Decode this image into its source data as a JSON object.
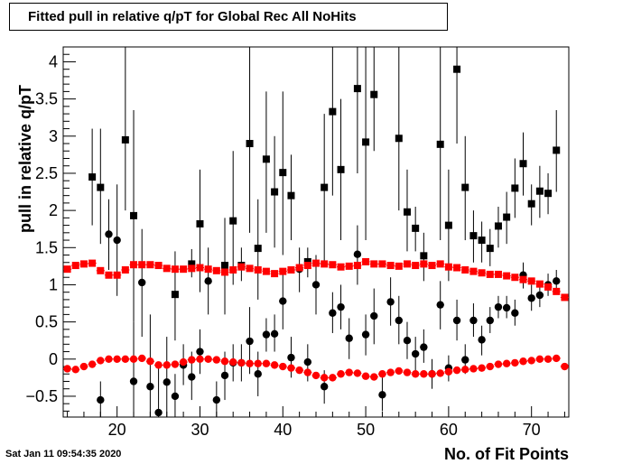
{
  "chart_data": {
    "type": "scatter",
    "title": "Fitted pull in relative q/pT for Global Rec All NoHits",
    "xlabel": "No. of Fit Points",
    "ylabel": "pull in relative q/pT",
    "xlim": [
      13.5,
      74.5
    ],
    "ylim": [
      -0.78,
      4.2
    ],
    "xticks": [
      20,
      30,
      40,
      50,
      60,
      70
    ],
    "yticks": [
      -0.5,
      0,
      0.5,
      1,
      1.5,
      2,
      2.5,
      3,
      3.5,
      4
    ],
    "xtick_labels": [
      "20",
      "30",
      "40",
      "50",
      "60",
      "70"
    ],
    "ytick_labels": [
      "−0.5",
      "0",
      "0.5",
      "1",
      "1.5",
      "2",
      "2.5",
      "3",
      "3.5",
      "4"
    ],
    "grid": false,
    "series": [
      {
        "marker": "square",
        "color": "#000000",
        "points": [
          {
            "x": 17,
            "y": 2.45,
            "lo": 1.8,
            "hi": 3.1
          },
          {
            "x": 18,
            "y": 2.31,
            "lo": 1.55,
            "hi": 3.1
          },
          {
            "x": 21,
            "y": 2.95,
            "lo": 2.0,
            "hi": 4.2
          },
          {
            "x": 22,
            "y": 1.93,
            "lo": 0.5,
            "hi": 3.35
          },
          {
            "x": 27,
            "y": 0.87,
            "lo": 0.25,
            "hi": 1.45
          },
          {
            "x": 29,
            "y": 1.28,
            "lo": 1.1,
            "hi": 1.48
          },
          {
            "x": 30,
            "y": 1.82,
            "lo": 0.9,
            "hi": 2.55
          },
          {
            "x": 33,
            "y": 1.26,
            "lo": 0.6,
            "hi": 1.9
          },
          {
            "x": 34,
            "y": 1.86,
            "lo": 1.0,
            "hi": 2.8
          },
          {
            "x": 35,
            "y": 1.26,
            "lo": 1.05,
            "hi": 1.5
          },
          {
            "x": 36,
            "y": 2.9,
            "lo": 1.7,
            "hi": 4.2
          },
          {
            "x": 37,
            "y": 1.49,
            "lo": 0.8,
            "hi": 2.15
          },
          {
            "x": 38,
            "y": 2.69,
            "lo": 1.7,
            "hi": 3.6
          },
          {
            "x": 39,
            "y": 2.25,
            "lo": 1.5,
            "hi": 3.0
          },
          {
            "x": 40,
            "y": 2.51,
            "lo": 1.4,
            "hi": 3.6
          },
          {
            "x": 41,
            "y": 2.2,
            "lo": 1.6,
            "hi": 2.75
          },
          {
            "x": 43,
            "y": 1.31,
            "lo": 1.1,
            "hi": 1.5
          },
          {
            "x": 45,
            "y": 2.31,
            "lo": 1.3,
            "hi": 3.3
          },
          {
            "x": 46,
            "y": 3.33,
            "lo": 2.2,
            "hi": 4.2
          },
          {
            "x": 47,
            "y": 2.55,
            "lo": 1.6,
            "hi": 3.5
          },
          {
            "x": 49,
            "y": 3.64,
            "lo": 2.5,
            "hi": 4.2
          },
          {
            "x": 50,
            "y": 2.92,
            "lo": 1.6,
            "hi": 4.2
          },
          {
            "x": 51,
            "y": 3.56,
            "lo": 2.8,
            "hi": 4.2
          },
          {
            "x": 54,
            "y": 2.97,
            "lo": 2.0,
            "hi": 4.2
          },
          {
            "x": 55,
            "y": 1.98,
            "lo": 1.45,
            "hi": 2.55
          },
          {
            "x": 56,
            "y": 1.76,
            "lo": 1.45,
            "hi": 2.05
          },
          {
            "x": 57,
            "y": 1.39,
            "lo": 1.05,
            "hi": 1.7
          },
          {
            "x": 59,
            "y": 2.89,
            "lo": 1.6,
            "hi": 4.2
          },
          {
            "x": 60,
            "y": 1.8,
            "lo": 1.05,
            "hi": 2.55
          },
          {
            "x": 61,
            "y": 3.9,
            "lo": 2.9,
            "hi": 4.2
          },
          {
            "x": 62,
            "y": 2.31,
            "lo": 1.6,
            "hi": 3.0
          },
          {
            "x": 63,
            "y": 1.66,
            "lo": 1.3,
            "hi": 2.0
          },
          {
            "x": 64,
            "y": 1.6,
            "lo": 1.3,
            "hi": 1.85
          },
          {
            "x": 65,
            "y": 1.49,
            "lo": 1.25,
            "hi": 1.75
          },
          {
            "x": 66,
            "y": 1.79,
            "lo": 1.5,
            "hi": 2.05
          },
          {
            "x": 67,
            "y": 1.91,
            "lo": 1.55,
            "hi": 2.25
          },
          {
            "x": 68,
            "y": 2.3,
            "lo": 1.9,
            "hi": 2.7
          },
          {
            "x": 69,
            "y": 2.63,
            "lo": 2.2,
            "hi": 3.05
          },
          {
            "x": 70,
            "y": 2.09,
            "lo": 1.8,
            "hi": 2.35
          },
          {
            "x": 71,
            "y": 2.26,
            "lo": 1.9,
            "hi": 2.6
          },
          {
            "x": 72,
            "y": 2.23,
            "lo": 1.95,
            "hi": 2.5
          },
          {
            "x": 73,
            "y": 2.81,
            "lo": 2.25,
            "hi": 3.35
          }
        ]
      },
      {
        "marker": "circle",
        "color": "#000000",
        "points": [
          {
            "x": 18,
            "y": -0.55,
            "lo": -0.78,
            "hi": -0.3
          },
          {
            "x": 19,
            "y": 1.68,
            "lo": 1.2,
            "hi": 2.15
          },
          {
            "x": 20,
            "y": 1.6,
            "lo": 0.85,
            "hi": 2.35
          },
          {
            "x": 22,
            "y": -0.3,
            "lo": -0.78,
            "hi": 0.5
          },
          {
            "x": 23,
            "y": 1.03,
            "lo": 0.3,
            "hi": 1.75
          },
          {
            "x": 24,
            "y": -0.37,
            "lo": -0.78,
            "hi": 0.6
          },
          {
            "x": 25,
            "y": -0.72,
            "lo": -0.78,
            "hi": -0.1
          },
          {
            "x": 26,
            "y": -0.31,
            "lo": -0.78,
            "hi": 0.3
          },
          {
            "x": 27,
            "y": -0.5,
            "lo": -0.78,
            "hi": -0.2
          },
          {
            "x": 28,
            "y": -0.08,
            "lo": -0.35,
            "hi": 0.2
          },
          {
            "x": 29,
            "y": -0.24,
            "lo": -0.55,
            "hi": 0.1
          },
          {
            "x": 30,
            "y": 0.1,
            "lo": -0.2,
            "hi": 0.4
          },
          {
            "x": 31,
            "y": 1.05,
            "lo": 0.6,
            "hi": 1.5
          },
          {
            "x": 32,
            "y": -0.55,
            "lo": -0.78,
            "hi": -0.3
          },
          {
            "x": 33,
            "y": -0.22,
            "lo": -0.55,
            "hi": 0.1
          },
          {
            "x": 34,
            "y": -0.05,
            "lo": -0.3,
            "hi": 0.2
          },
          {
            "x": 35,
            "y": -0.05,
            "lo": -0.3,
            "hi": 0.2
          },
          {
            "x": 36,
            "y": 0.24,
            "lo": -0.2,
            "hi": 0.7
          },
          {
            "x": 37,
            "y": -0.2,
            "lo": -0.5,
            "hi": 0.1
          },
          {
            "x": 38,
            "y": 0.33,
            "lo": 0.1,
            "hi": 0.55
          },
          {
            "x": 39,
            "y": 0.34,
            "lo": 0.1,
            "hi": 0.6
          },
          {
            "x": 40,
            "y": 0.78,
            "lo": 0.4,
            "hi": 1.15
          },
          {
            "x": 41,
            "y": 0.02,
            "lo": -0.25,
            "hi": 0.3
          },
          {
            "x": 42,
            "y": 1.21,
            "lo": 0.9,
            "hi": 1.5
          },
          {
            "x": 43,
            "y": -0.04,
            "lo": -0.3,
            "hi": 0.2
          },
          {
            "x": 44,
            "y": 1.0,
            "lo": 0.6,
            "hi": 1.4
          },
          {
            "x": 45,
            "y": -0.37,
            "lo": -0.6,
            "hi": -0.15
          },
          {
            "x": 46,
            "y": 0.62,
            "lo": 0.35,
            "hi": 0.9
          },
          {
            "x": 47,
            "y": 0.7,
            "lo": 0.4,
            "hi": 1.0
          },
          {
            "x": 48,
            "y": 0.28,
            "lo": 0.0,
            "hi": 0.55
          },
          {
            "x": 49,
            "y": 1.41,
            "lo": 1.0,
            "hi": 1.8
          },
          {
            "x": 50,
            "y": 0.33,
            "lo": 0.05,
            "hi": 0.6
          },
          {
            "x": 51,
            "y": 0.58,
            "lo": 0.2,
            "hi": 0.95
          },
          {
            "x": 52,
            "y": -0.48,
            "lo": -0.7,
            "hi": -0.25
          },
          {
            "x": 53,
            "y": 0.77,
            "lo": 0.45,
            "hi": 1.1
          },
          {
            "x": 54,
            "y": 0.52,
            "lo": 0.2,
            "hi": 0.85
          },
          {
            "x": 55,
            "y": 0.25,
            "lo": 0.0,
            "hi": 0.5
          },
          {
            "x": 56,
            "y": 0.07,
            "lo": -0.15,
            "hi": 0.3
          },
          {
            "x": 57,
            "y": 0.16,
            "lo": -0.05,
            "hi": 0.4
          },
          {
            "x": 58,
            "y": -0.2,
            "lo": -0.4,
            "hi": 0.0
          },
          {
            "x": 59,
            "y": 0.73,
            "lo": 0.4,
            "hi": 1.05
          },
          {
            "x": 60,
            "y": -0.12,
            "lo": -0.3,
            "hi": 0.05
          },
          {
            "x": 61,
            "y": 0.52,
            "lo": 0.25,
            "hi": 0.8
          },
          {
            "x": 62,
            "y": -0.01,
            "lo": -0.2,
            "hi": 0.2
          },
          {
            "x": 63,
            "y": 0.52,
            "lo": 0.3,
            "hi": 0.75
          },
          {
            "x": 64,
            "y": 0.26,
            "lo": 0.05,
            "hi": 0.45
          },
          {
            "x": 65,
            "y": 0.52,
            "lo": 0.35,
            "hi": 0.7
          },
          {
            "x": 66,
            "y": 0.7,
            "lo": 0.55,
            "hi": 0.85
          },
          {
            "x": 67,
            "y": 0.69,
            "lo": 0.55,
            "hi": 0.85
          },
          {
            "x": 68,
            "y": 0.62,
            "lo": 0.45,
            "hi": 0.8
          },
          {
            "x": 69,
            "y": 1.13,
            "lo": 0.95,
            "hi": 1.3
          },
          {
            "x": 70,
            "y": 0.82,
            "lo": 0.65,
            "hi": 1.0
          },
          {
            "x": 71,
            "y": 0.86,
            "lo": 0.7,
            "hi": 1.0
          },
          {
            "x": 72,
            "y": 1.0,
            "lo": 0.85,
            "hi": 1.15
          },
          {
            "x": 73,
            "y": 1.05,
            "lo": 0.9,
            "hi": 1.2
          }
        ]
      },
      {
        "marker": "square",
        "color": "#ff0000",
        "x": [
          14,
          15,
          16,
          17,
          18,
          19,
          20,
          21,
          22,
          23,
          24,
          25,
          26,
          27,
          28,
          29,
          30,
          31,
          32,
          33,
          34,
          35,
          36,
          37,
          38,
          39,
          40,
          41,
          42,
          43,
          44,
          45,
          46,
          47,
          48,
          49,
          50,
          51,
          52,
          53,
          54,
          55,
          56,
          57,
          58,
          59,
          60,
          61,
          62,
          63,
          64,
          65,
          66,
          67,
          68,
          69,
          70,
          71,
          72,
          73,
          74
        ],
        "y": [
          1.21,
          1.26,
          1.28,
          1.29,
          1.19,
          1.13,
          1.13,
          1.2,
          1.27,
          1.27,
          1.27,
          1.26,
          1.22,
          1.21,
          1.21,
          1.22,
          1.23,
          1.21,
          1.19,
          1.17,
          1.2,
          1.24,
          1.22,
          1.2,
          1.18,
          1.15,
          1.18,
          1.2,
          1.23,
          1.26,
          1.29,
          1.28,
          1.27,
          1.24,
          1.25,
          1.26,
          1.31,
          1.28,
          1.28,
          1.26,
          1.25,
          1.28,
          1.26,
          1.28,
          1.26,
          1.28,
          1.24,
          1.23,
          1.2,
          1.18,
          1.16,
          1.14,
          1.14,
          1.12,
          1.1,
          1.07,
          1.05,
          1.01,
          0.97,
          0.91,
          0.83
        ]
      },
      {
        "marker": "circle",
        "color": "#ff0000",
        "x": [
          14,
          15,
          16,
          17,
          18,
          19,
          20,
          21,
          22,
          23,
          24,
          25,
          26,
          27,
          28,
          29,
          30,
          31,
          32,
          33,
          34,
          35,
          36,
          37,
          38,
          39,
          40,
          41,
          42,
          43,
          44,
          45,
          46,
          47,
          48,
          49,
          50,
          51,
          52,
          53,
          54,
          55,
          56,
          57,
          58,
          59,
          60,
          61,
          62,
          63,
          64,
          65,
          66,
          67,
          68,
          69,
          70,
          71,
          72,
          73,
          74
        ],
        "y": [
          -0.13,
          -0.14,
          -0.1,
          -0.07,
          -0.02,
          0.0,
          0.0,
          0.0,
          0.0,
          0.01,
          -0.03,
          -0.08,
          -0.08,
          -0.07,
          -0.04,
          -0.01,
          0.0,
          0.0,
          -0.01,
          -0.03,
          -0.04,
          -0.05,
          -0.06,
          -0.06,
          -0.06,
          -0.08,
          -0.1,
          -0.12,
          -0.15,
          -0.18,
          -0.22,
          -0.25,
          -0.25,
          -0.2,
          -0.18,
          -0.19,
          -0.23,
          -0.24,
          -0.2,
          -0.18,
          -0.16,
          -0.18,
          -0.2,
          -0.2,
          -0.2,
          -0.19,
          -0.17,
          -0.15,
          -0.14,
          -0.13,
          -0.12,
          -0.1,
          -0.07,
          -0.06,
          -0.05,
          -0.03,
          -0.02,
          0.0,
          0.0,
          0.01,
          -0.1
        ]
      }
    ]
  },
  "timestamp": "Sat Jan 11 09:54:35 2020"
}
